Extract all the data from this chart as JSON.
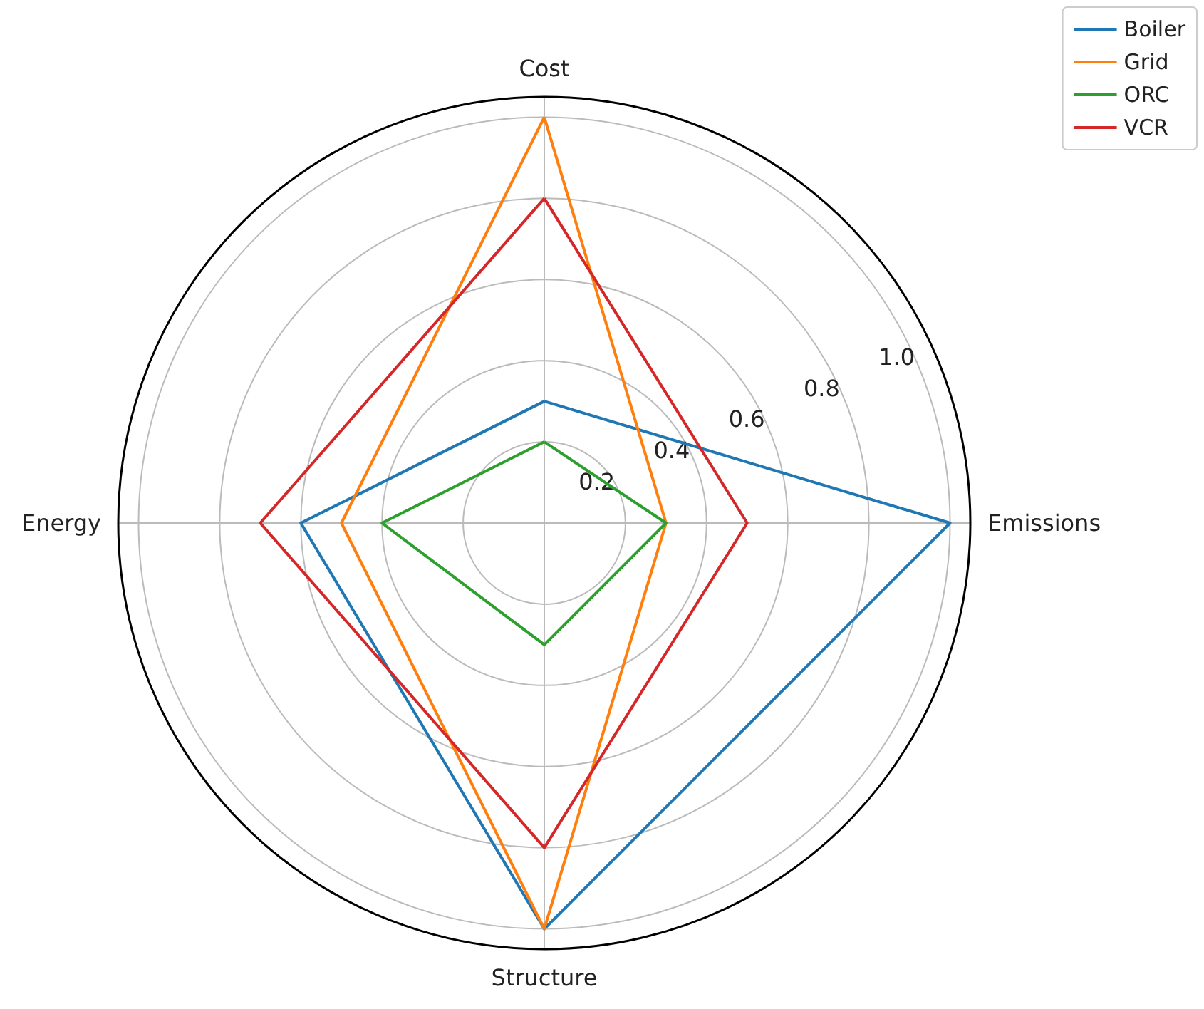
{
  "chart_data": {
    "type": "radar",
    "categories": [
      "Cost",
      "Emissions",
      "Structure",
      "Energy"
    ],
    "series": [
      {
        "name": "Boiler",
        "color": "#1f77b4",
        "values": [
          0.3,
          1.0,
          1.0,
          0.6
        ]
      },
      {
        "name": "Grid",
        "color": "#ff7f0e",
        "values": [
          1.0,
          0.3,
          1.0,
          0.5
        ]
      },
      {
        "name": "ORC",
        "color": "#2ca02c",
        "values": [
          0.2,
          0.3,
          0.3,
          0.4
        ]
      },
      {
        "name": "VCR",
        "color": "#d62728",
        "values": [
          0.8,
          0.5,
          0.8,
          0.7
        ]
      }
    ],
    "ylim": [
      0,
      1.05
    ],
    "yticks": [
      0.2,
      0.4,
      0.6,
      0.8,
      {
        "value": 1,
        "label": "1.0"
      }
    ],
    "grid": true,
    "legend": "top right",
    "marker": "none",
    "line_style": "solid"
  }
}
